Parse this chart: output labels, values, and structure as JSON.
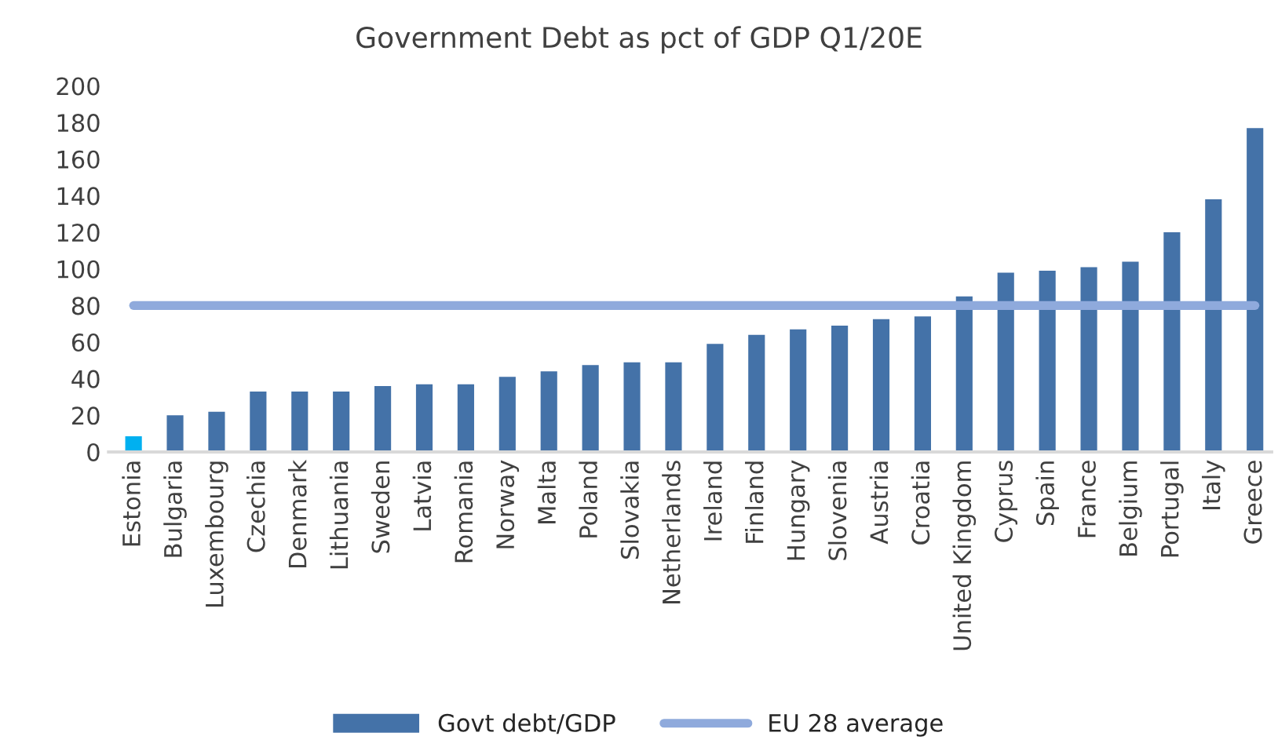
{
  "chart_data": {
    "type": "bar",
    "title": "Government Debt as pct of GDP Q1/20E",
    "categories": [
      "Estonia",
      "Bulgaria",
      "Luxembourg",
      "Czechia",
      "Denmark",
      "Lithuania",
      "Sweden",
      "Latvia",
      "Romania",
      "Norway",
      "Malta",
      "Poland",
      "Slovakia",
      "Netherlands",
      "Ireland",
      "Finland",
      "Hungary",
      "Slovenia",
      "Austria",
      "Croatia",
      "United Kingdom",
      "Cyprus",
      "Spain",
      "France",
      "Belgium",
      "Portugal",
      "Italy",
      "Greece"
    ],
    "series": [
      {
        "name": "Govt debt/GDP",
        "color": "#4472a8",
        "colors": [
          "#00b0f0",
          "#4472a8",
          "#4472a8",
          "#4472a8",
          "#4472a8",
          "#4472a8",
          "#4472a8",
          "#4472a8",
          "#4472a8",
          "#4472a8",
          "#4472a8",
          "#4472a8",
          "#4472a8",
          "#4472a8",
          "#4472a8",
          "#4472a8",
          "#4472a8",
          "#4472a8",
          "#4472a8",
          "#4472a8",
          "#4472a8",
          "#4472a8",
          "#4472a8",
          "#4472a8",
          "#4472a8",
          "#4472a8",
          "#4472a8",
          "#4472a8"
        ],
        "values": [
          8.6,
          20,
          22,
          33,
          33,
          33,
          36,
          37,
          37,
          41,
          44,
          47.5,
          49,
          49,
          59,
          64,
          67,
          69,
          72.5,
          74,
          85,
          98,
          99,
          101,
          104,
          120,
          138,
          177
        ]
      }
    ],
    "ref_lines": [
      {
        "axis": "y",
        "value": 80,
        "label": "EU 28 average",
        "color": "#8faadc"
      }
    ],
    "ylim": [
      0,
      200
    ],
    "yticks": [
      0,
      20,
      40,
      60,
      80,
      100,
      120,
      140,
      160,
      180,
      200
    ],
    "grid": false,
    "legend": "bottom"
  }
}
